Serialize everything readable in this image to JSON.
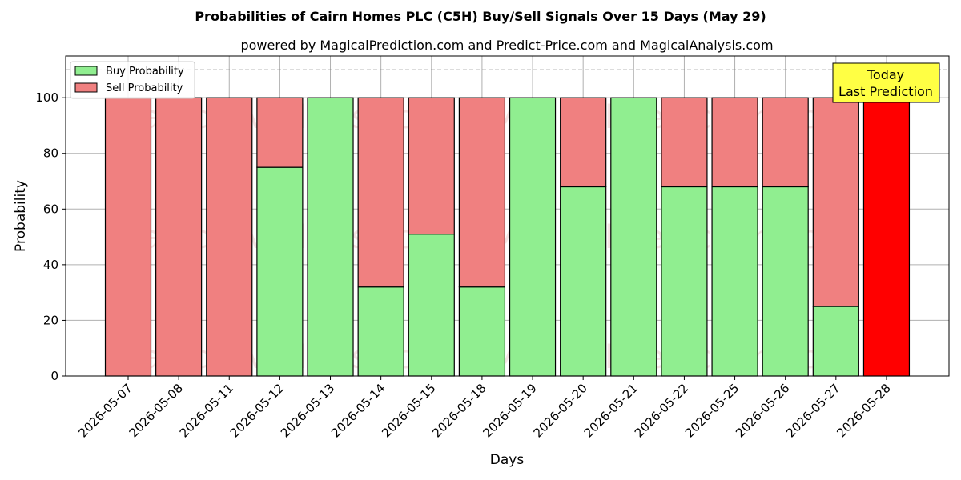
{
  "chart_data": {
    "type": "bar",
    "stacked": true,
    "title": "Probabilities of Cairn Homes PLC (C5H) Buy/Sell Signals Over 15 Days (May 29)",
    "subtitle": "powered by MagicalPrediction.com and Predict-Price.com and MagicalAnalysis.com",
    "xlabel": "Days",
    "ylabel": "Probability",
    "ylim": [
      0,
      115
    ],
    "yticks": [
      0,
      20,
      40,
      60,
      80,
      100
    ],
    "grid": true,
    "legend_position": "top-left",
    "reference_line": 110,
    "categories": [
      "2026-05-07",
      "2026-05-08",
      "2026-05-11",
      "2026-05-12",
      "2026-05-13",
      "2026-05-14",
      "2026-05-15",
      "2026-05-18",
      "2026-05-19",
      "2026-05-20",
      "2026-05-21",
      "2026-05-22",
      "2026-05-25",
      "2026-05-26",
      "2026-05-27",
      "2026-05-28"
    ],
    "series": [
      {
        "name": "Buy Probability",
        "color": "#90ee90",
        "values": [
          0,
          0,
          0,
          75,
          100,
          32,
          51,
          32,
          100,
          68,
          100,
          68,
          68,
          68,
          25,
          0
        ]
      },
      {
        "name": "Sell Probability",
        "color": "#f08080",
        "values": [
          100,
          100,
          100,
          25,
          0,
          68,
          49,
          68,
          0,
          32,
          0,
          32,
          32,
          32,
          75,
          100
        ]
      }
    ],
    "highlight": {
      "index": 15,
      "color": "#ff0000"
    },
    "annotation": {
      "lines": [
        "Today",
        "Last Prediction"
      ],
      "background": "#ffff44"
    },
    "watermarks": [
      "MagicalAnalysis.com",
      "MagicalPrediction.com"
    ]
  }
}
